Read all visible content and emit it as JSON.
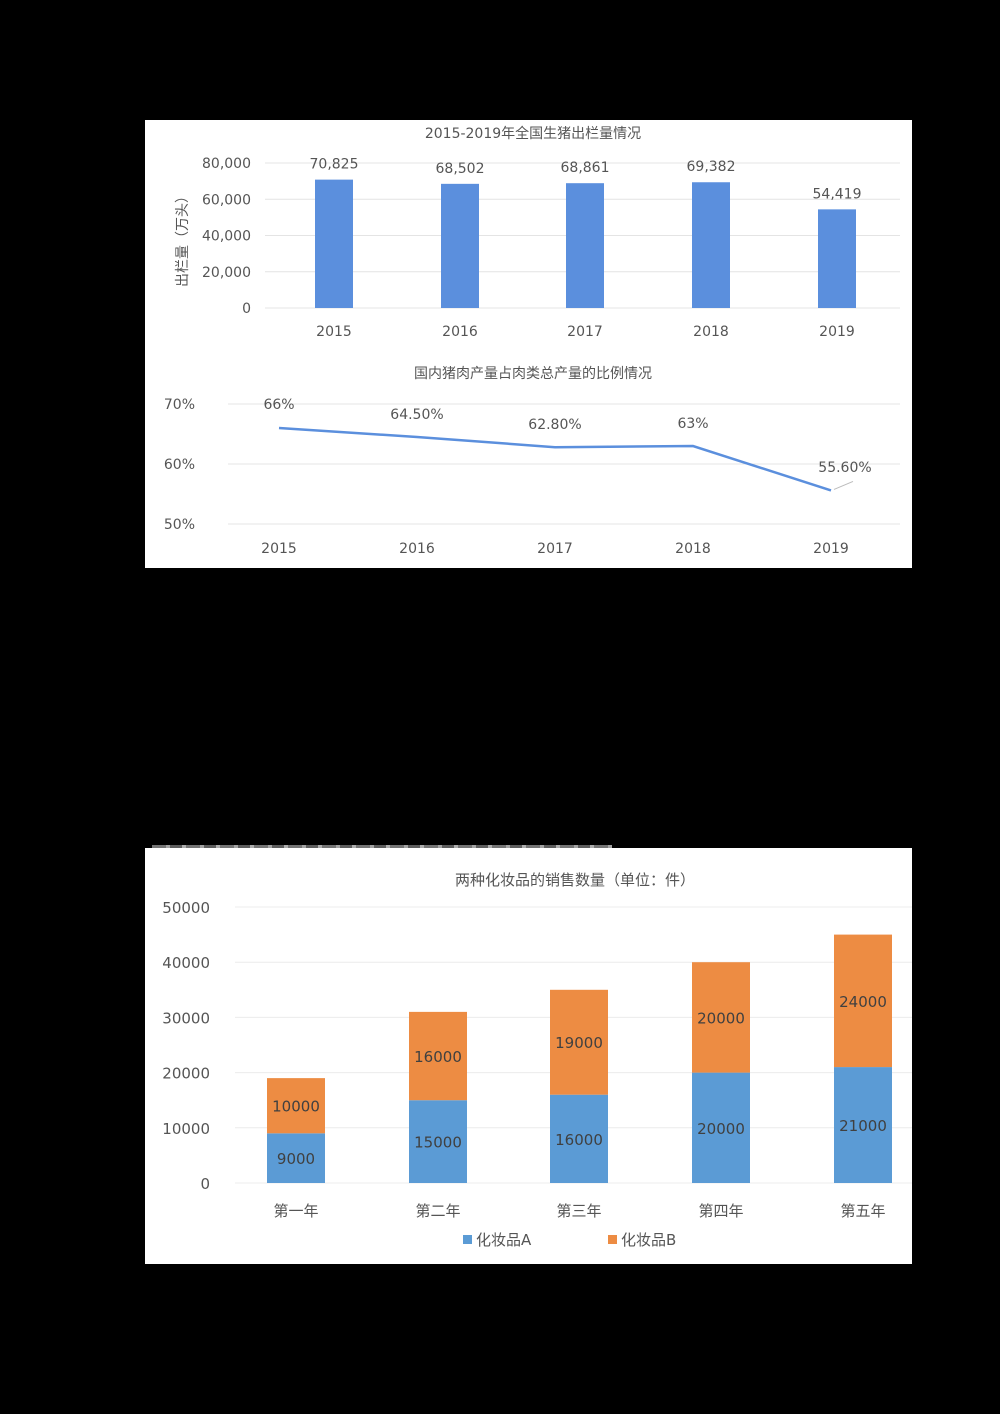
{
  "chart_data": [
    {
      "type": "bar",
      "title": "2015-2019年全国生猪出栏量情况",
      "categories": [
        "2015",
        "2016",
        "2017",
        "2018",
        "2019"
      ],
      "values": [
        70825,
        68502,
        68861,
        69382,
        54419
      ],
      "data_labels": [
        "70,825",
        "68,502",
        "68,861",
        "69,382",
        "54,419"
      ],
      "ylabel": "出栏量（万头）",
      "yticks": [
        "0",
        "20,000",
        "40,000",
        "60,000",
        "80,000"
      ],
      "ylim": [
        0,
        80000
      ],
      "grid": true,
      "color": "#5b8fdd"
    },
    {
      "type": "line",
      "title": "国内猪肉产量占肉类总产量的比例情况",
      "categories": [
        "2015",
        "2016",
        "2017",
        "2018",
        "2019"
      ],
      "values": [
        66,
        64.5,
        62.8,
        63,
        55.6
      ],
      "data_labels": [
        "66%",
        "64.50%",
        "62.80%",
        "63%",
        "55.60%"
      ],
      "yticks": [
        "50%",
        "60%",
        "70%"
      ],
      "ylim": [
        50,
        70
      ],
      "grid": true,
      "color": "#5b8fdd"
    },
    {
      "type": "bar",
      "stacked": true,
      "title": "两种化妆品的销售数量（单位：件）",
      "categories": [
        "第一年",
        "第二年",
        "第三年",
        "第四年",
        "第五年"
      ],
      "series": [
        {
          "name": "化妆品A",
          "values": [
            9000,
            15000,
            16000,
            20000,
            21000
          ],
          "color": "#5b9bd5"
        },
        {
          "name": "化妆品B",
          "values": [
            10000,
            16000,
            19000,
            20000,
            24000
          ],
          "color": "#ed8c43"
        }
      ],
      "yticks": [
        "0",
        "10000",
        "20000",
        "30000",
        "40000",
        "50000"
      ],
      "ylim": [
        0,
        50000
      ],
      "grid": true,
      "legend_position": "bottom"
    }
  ]
}
